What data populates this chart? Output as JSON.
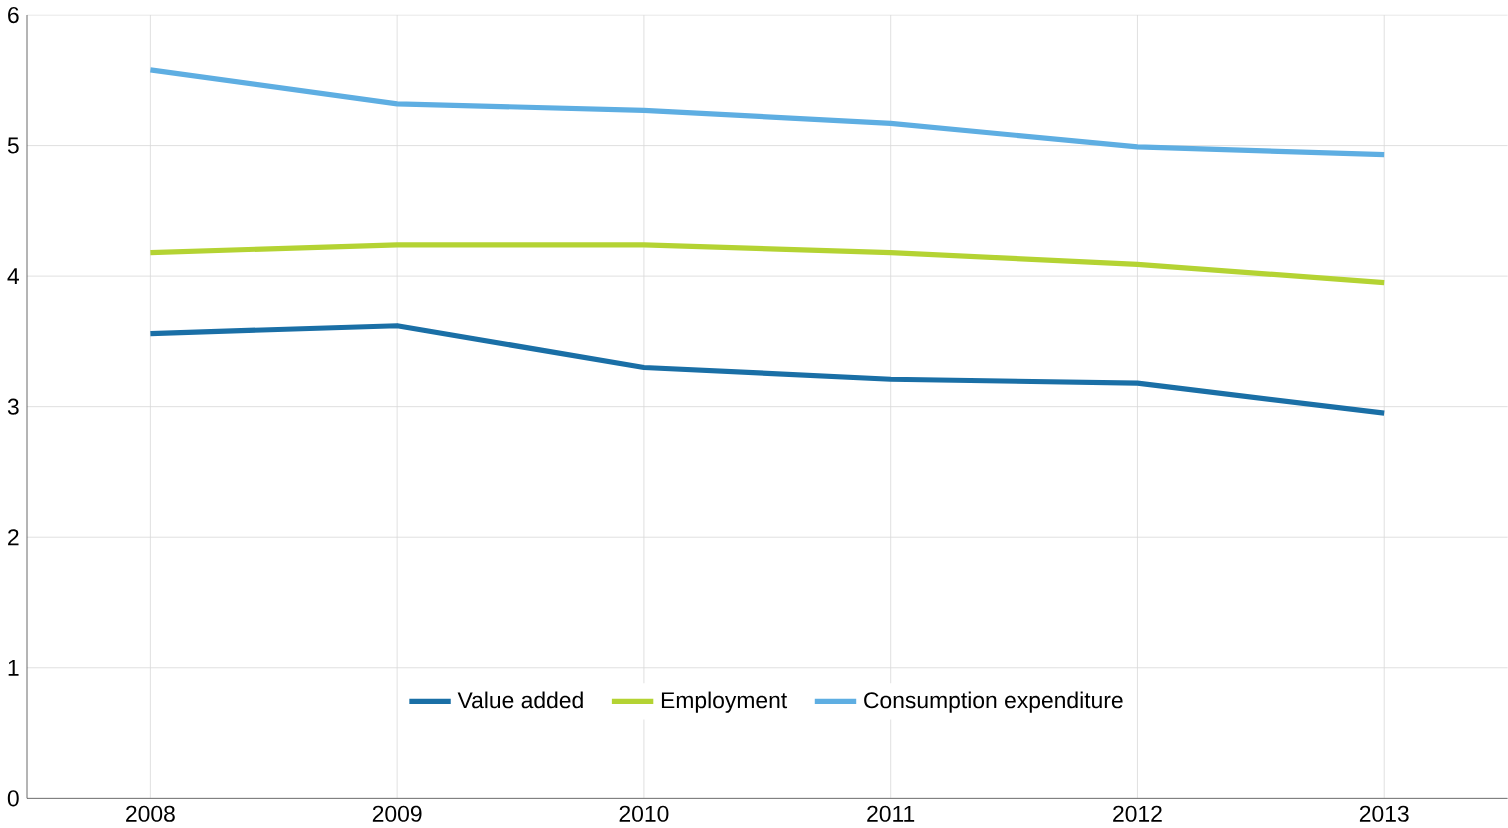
{
  "chart_data": {
    "type": "line",
    "categories": [
      "2008",
      "2009",
      "2010",
      "2011",
      "2012",
      "2013"
    ],
    "series": [
      {
        "name": "Value added",
        "color": "#1a6fa6",
        "values": [
          3.56,
          3.62,
          3.3,
          3.21,
          3.18,
          2.95
        ]
      },
      {
        "name": "Employment",
        "color": "#b4d333",
        "values": [
          4.18,
          4.24,
          4.24,
          4.18,
          4.09,
          3.95
        ]
      },
      {
        "name": "Consumption expenditure",
        "color": "#5eaee2",
        "values": [
          5.58,
          5.32,
          5.27,
          5.17,
          4.99,
          4.93
        ]
      }
    ],
    "ylim": [
      0,
      6
    ],
    "yticks": [
      0,
      1,
      2,
      3,
      4,
      5,
      6
    ],
    "grid": true,
    "legend": "bottom",
    "marker": "none",
    "line_style": "solid"
  }
}
